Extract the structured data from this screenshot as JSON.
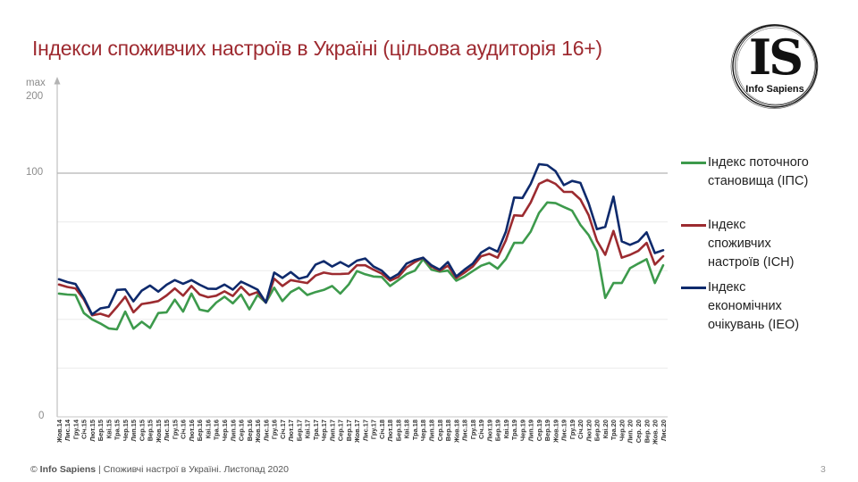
{
  "slide": {
    "title": "Індекси споживчих настроїв в Україні (цільова аудиторія 16+)",
    "page_number": "3"
  },
  "logo": {
    "monogram": "IS",
    "name": "Info Sapiens"
  },
  "axis": {
    "y_max_label": "max",
    "y_max_value": "200",
    "y_tick_100": "100",
    "y_tick_0": "0"
  },
  "legend": {
    "items": [
      {
        "key": "ips",
        "color": "#3d9a4c",
        "lines": [
          "Індекс поточного",
          "становища (ІПС)"
        ]
      },
      {
        "key": "isn",
        "color": "#9c2b30",
        "lines": [
          "Індекс",
          "споживчих",
          "настроїв (ІСН)"
        ]
      },
      {
        "key": "ieo",
        "color": "#0e2a6c",
        "lines": [
          "Індекс",
          "економічних",
          "очікувань (ІЕО)"
        ]
      }
    ]
  },
  "footer": {
    "copyright_symbol": "©",
    "brand": "Info Sapiens",
    "separator": "|",
    "text": "Споживчі настрої в Україні. Листопад 2020"
  },
  "chart_data": {
    "type": "line",
    "title": "Індекси споживчих настроїв в Україні (цільова аудиторія 16+)",
    "xlabel": "",
    "ylabel": "",
    "ylim": [
      0,
      200
    ],
    "y_ticks": [
      0,
      100,
      200
    ],
    "y_tick_labels": [
      "0",
      "100",
      "max 200"
    ],
    "gridlines": [
      20,
      40,
      60,
      80,
      100
    ],
    "reference_line": 100,
    "legend_position": "right",
    "categories": [
      "Жов.14",
      "Лис.14",
      "Гру.14",
      "Січ.15",
      "Лют.15",
      "Бер.15",
      "Кві.15",
      "Тра.15",
      "Чер.15",
      "Лип.15",
      "Сер.15",
      "Вер.15",
      "Жов.15",
      "Лис.15",
      "Гру.15",
      "Січ.16",
      "Лют.16",
      "Бер.16",
      "Кві.16",
      "Тра.16",
      "Чер.16",
      "Лип.16",
      "Сер.16",
      "Вер.16",
      "Жов.16",
      "Лис.16",
      "Гру.16",
      "Січ.17",
      "Лют.17",
      "Бер.17",
      "Кві.17",
      "Тра.17",
      "Чер.17",
      "Лип.17",
      "Сер.17",
      "Вер.17",
      "Жов.17",
      "Лис.17",
      "Гру.17",
      "Січ.18",
      "Лют.18",
      "Бер.18",
      "Кві.18",
      "Тра.18",
      "Чер.18",
      "Лип.18",
      "Сер.18",
      "Вер.18",
      "Жов.18",
      "Лис.18",
      "Гру.18",
      "Січ.19",
      "Лют.19",
      "Бер.19",
      "Кві.19",
      "Тра.19",
      "Чер.19",
      "Лип.19",
      "Сер.19",
      "Вер.19",
      "Жов.19",
      "Лис.19",
      "Гру.19",
      "Січ.20",
      "Лют.20",
      "Бер.20",
      "Кві.20",
      "Тра.20",
      "Чер.20",
      "Лип. 20",
      "Сер. 20",
      "Вер. 20",
      "Жов. 20",
      "Лис.20"
    ],
    "series": [
      {
        "name": "Індекс поточного становища (ІПС)",
        "key": "ips",
        "color": "#3d9a4c",
        "values": [
          50.6,
          50.2,
          50.0,
          42.6,
          40.0,
          38.3,
          36.3,
          35.9,
          43.2,
          36.2,
          39.0,
          36.5,
          42.6,
          42.9,
          48.1,
          43.2,
          50.6,
          44.0,
          43.3,
          46.9,
          49.3,
          46.6,
          50.2,
          44.1,
          50.0,
          46.9,
          53.0,
          47.5,
          51.2,
          53.0,
          50.0,
          51.2,
          52.1,
          53.7,
          50.6,
          54.3,
          59.8,
          58.5,
          57.6,
          57.4,
          53.7,
          56.1,
          58.6,
          60.0,
          64.7,
          60.4,
          59.6,
          60.0,
          55.9,
          57.6,
          59.8,
          62.0,
          63.2,
          60.8,
          64.8,
          71.4,
          71.4,
          76.0,
          83.7,
          88.0,
          87.7,
          86.1,
          84.6,
          78.8,
          74.6,
          68.1,
          48.8,
          54.9,
          54.9,
          61.0,
          62.9,
          64.7,
          54.9,
          62.2
        ]
      },
      {
        "name": "Індекс споживчих настроїв (ІСН)",
        "key": "isn",
        "color": "#9c2b30",
        "values": [
          54.3,
          53.3,
          52.7,
          48.2,
          41.7,
          42.3,
          41.2,
          45.1,
          49.3,
          42.9,
          46.3,
          46.8,
          47.5,
          49.8,
          52.7,
          49.7,
          53.7,
          50.2,
          49.1,
          49.7,
          51.5,
          49.6,
          53.4,
          50.0,
          51.2,
          46.9,
          56.7,
          53.7,
          56.1,
          55.5,
          54.9,
          58.0,
          59.2,
          58.6,
          58.6,
          58.8,
          62.2,
          62.2,
          60.4,
          58.8,
          55.9,
          57.4,
          61.3,
          63.5,
          65.3,
          61.7,
          60.0,
          62.0,
          57.0,
          59.2,
          61.7,
          65.9,
          66.9,
          65.3,
          72.4,
          82.7,
          82.5,
          88.0,
          95.6,
          97.2,
          95.6,
          92.3,
          92.3,
          89.2,
          82.8,
          72.3,
          66.5,
          76.3,
          65.3,
          66.5,
          68.1,
          71.4,
          62.5,
          65.9
        ]
      },
      {
        "name": "Індекс економічних очікувань (ІЕО)",
        "key": "ieo",
        "color": "#0e2a6c",
        "values": [
          56.5,
          55.3,
          54.5,
          48.9,
          42.0,
          44.5,
          45.1,
          52.1,
          52.3,
          47.4,
          51.8,
          53.9,
          51.4,
          54.2,
          56.1,
          54.6,
          56.1,
          54.2,
          52.6,
          52.5,
          54.3,
          52.2,
          55.5,
          53.9,
          52.2,
          46.9,
          59.2,
          57.0,
          59.4,
          56.7,
          57.6,
          62.5,
          63.9,
          61.7,
          63.5,
          61.7,
          64.1,
          65.0,
          61.7,
          60.0,
          56.7,
          58.6,
          62.9,
          64.4,
          65.3,
          62.2,
          60.4,
          63.5,
          57.6,
          60.4,
          62.9,
          67.4,
          69.4,
          67.8,
          76.0,
          90.0,
          89.8,
          95.6,
          103.7,
          103.3,
          100.8,
          95.1,
          96.8,
          96.0,
          87.7,
          77.0,
          78.0,
          90.4,
          72.0,
          70.6,
          72.0,
          75.7,
          67.2,
          68.4
        ]
      }
    ]
  }
}
